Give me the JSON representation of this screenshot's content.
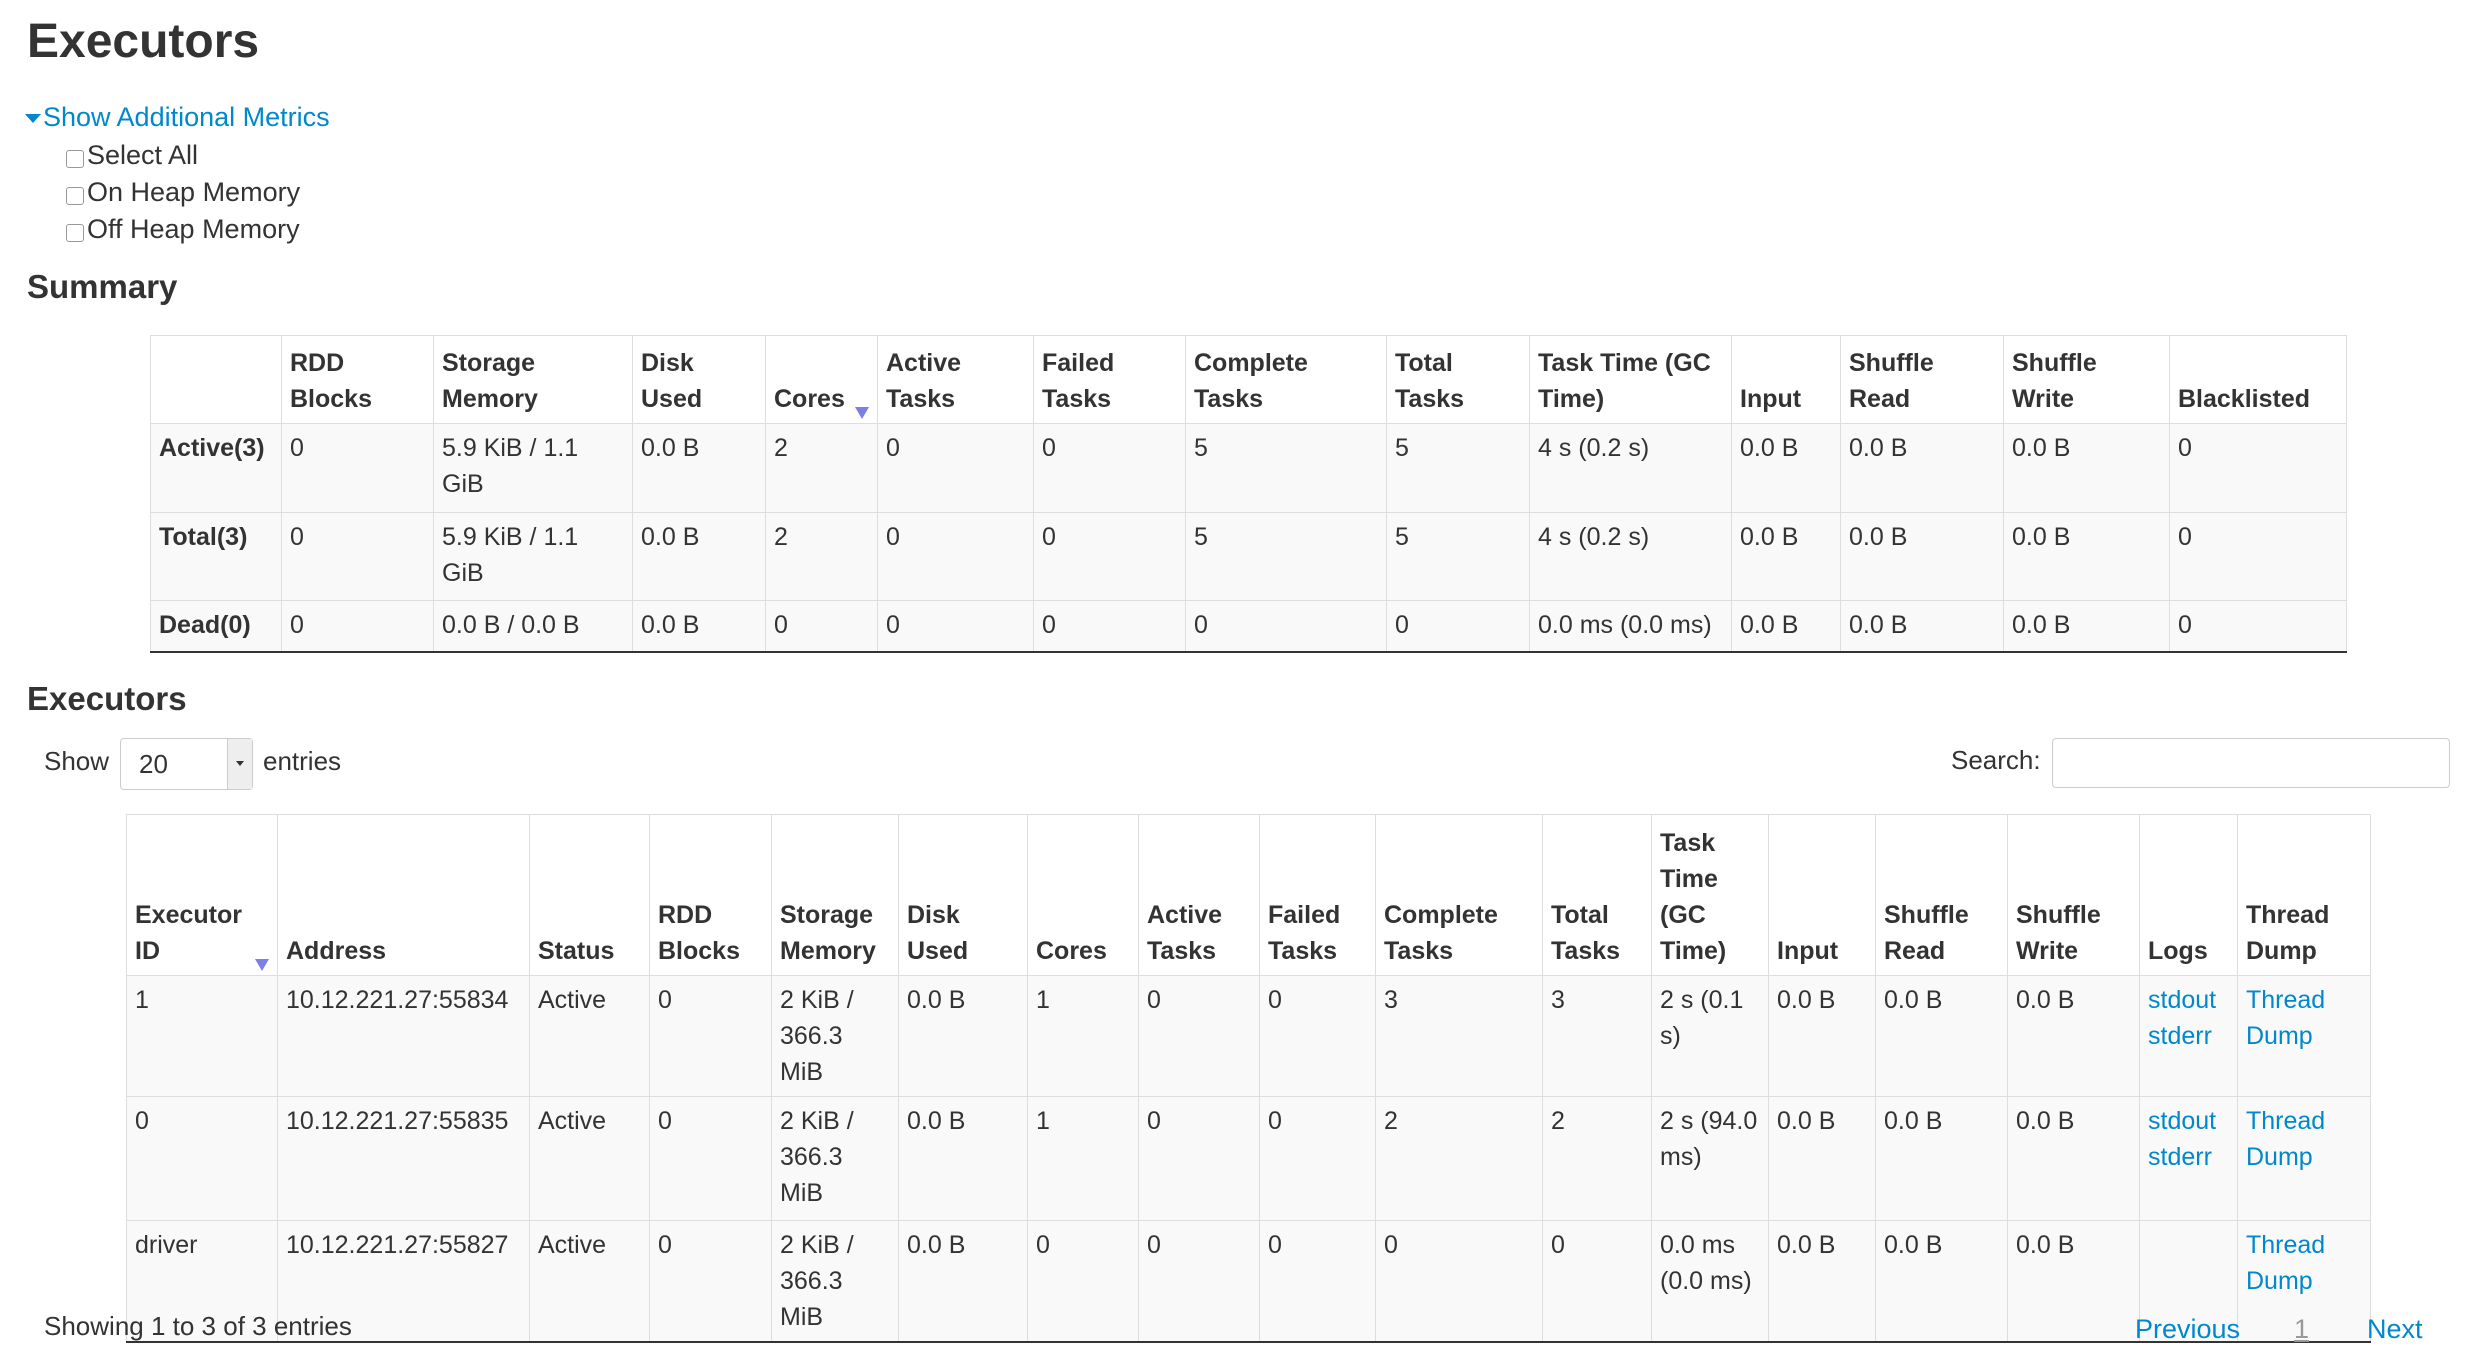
{
  "page_title": "Executors",
  "additional_metrics": {
    "toggle_label": "Show Additional Metrics",
    "options": [
      {
        "label": "Select All",
        "checked": false
      },
      {
        "label": "On Heap Memory",
        "checked": false
      },
      {
        "label": "Off Heap Memory",
        "checked": false
      }
    ]
  },
  "summary": {
    "title": "Summary",
    "sorted_column": "Cores",
    "columns": [
      "",
      "RDD Blocks",
      "Storage Memory",
      "Disk Used",
      "Cores",
      "Active Tasks",
      "Failed Tasks",
      "Complete Tasks",
      "Total Tasks",
      "Task Time (GC Time)",
      "Input",
      "Shuffle Read",
      "Shuffle Write",
      "Blacklisted"
    ],
    "rows": [
      [
        "Active(3)",
        "0",
        "5.9 KiB / 1.1 GiB",
        "0.0 B",
        "2",
        "0",
        "0",
        "5",
        "5",
        "4 s (0.2 s)",
        "0.0 B",
        "0.0 B",
        "0.0 B",
        "0"
      ],
      [
        "Total(3)",
        "0",
        "5.9 KiB / 1.1 GiB",
        "0.0 B",
        "2",
        "0",
        "0",
        "5",
        "5",
        "4 s (0.2 s)",
        "0.0 B",
        "0.0 B",
        "0.0 B",
        "0"
      ],
      [
        "Dead(0)",
        "0",
        "0.0 B / 0.0 B",
        "0.0 B",
        "0",
        "0",
        "0",
        "0",
        "0",
        "0.0 ms (0.0 ms)",
        "0.0 B",
        "0.0 B",
        "0.0 B",
        "0"
      ]
    ]
  },
  "executors": {
    "title": "Executors",
    "show_label": "Show",
    "entries_value": "20",
    "entries_label": "entries",
    "search_label": "Search:",
    "search_value": "",
    "sorted_column": "Executor ID",
    "columns": [
      "Executor ID",
      "Address",
      "Status",
      "RDD Blocks",
      "Storage Memory",
      "Disk Used",
      "Cores",
      "Active Tasks",
      "Failed Tasks",
      "Complete Tasks",
      "Total Tasks",
      "Task Time (GC Time)",
      "Input",
      "Shuffle Read",
      "Shuffle Write",
      "Logs",
      "Thread Dump"
    ],
    "rows": [
      {
        "cells": [
          "1",
          "10.12.221.27:55834",
          "Active",
          "0",
          "2 KiB / 366.3 MiB",
          "0.0 B",
          "1",
          "0",
          "0",
          "3",
          "3",
          "2 s (0.1 s)",
          "0.0 B",
          "0.0 B",
          "0.0 B"
        ],
        "logs": [
          "stdout",
          "stderr"
        ],
        "thread_dump": "Thread Dump"
      },
      {
        "cells": [
          "0",
          "10.12.221.27:55835",
          "Active",
          "0",
          "2 KiB / 366.3 MiB",
          "0.0 B",
          "1",
          "0",
          "0",
          "2",
          "2",
          "2 s (94.0 ms)",
          "0.0 B",
          "0.0 B",
          "0.0 B"
        ],
        "logs": [
          "stdout",
          "stderr"
        ],
        "thread_dump": "Thread Dump"
      },
      {
        "cells": [
          "driver",
          "10.12.221.27:55827",
          "Active",
          "0",
          "2 KiB / 366.3 MiB",
          "0.0 B",
          "0",
          "0",
          "0",
          "0",
          "0",
          "0.0 ms (0.0 ms)",
          "0.0 B",
          "0.0 B",
          "0.0 B"
        ],
        "logs": [],
        "thread_dump": "Thread Dump"
      }
    ],
    "info": "Showing 1 to 3 of 3 entries",
    "pagination": {
      "previous": "Previous",
      "current": "1",
      "next": "Next"
    }
  },
  "colors": {
    "link": "#0088cc",
    "sort_indicator": "#7b7fe6",
    "text": "#333333",
    "row_bg": "#f9f9f9"
  }
}
